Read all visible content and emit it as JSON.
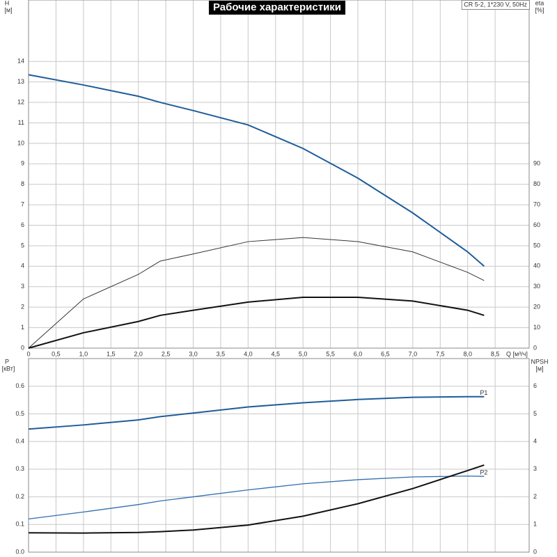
{
  "chart_data": [
    {
      "type": "line",
      "title": "Рабочие характеристики",
      "subtitle": "CR 5-2, 1*230 V, 50Hz",
      "ylabel": "H",
      "yunit": "[м]",
      "y2label": "eta",
      "y2unit": "[%]",
      "xlabel": "Q [м³/ч]",
      "x": [
        0,
        1,
        2,
        2.4,
        3,
        4,
        5,
        6,
        7,
        8,
        8.3
      ],
      "series": [
        {
          "color": "#1f5c99",
          "line_width": 2,
          "axis": "y",
          "values": [
            13.35,
            12.85,
            12.3,
            12.0,
            11.6,
            10.9,
            9.75,
            8.3,
            6.6,
            4.7,
            4.0
          ]
        },
        {
          "color": "#333333",
          "line_width": 1,
          "axis": "y2",
          "values": [
            0,
            24,
            36,
            42.5,
            46,
            52,
            54,
            52,
            47,
            37,
            33
          ]
        },
        {
          "color": "#111111",
          "line_width": 2,
          "axis": "y2",
          "values": [
            0,
            7.5,
            13,
            16,
            18.5,
            22.5,
            24.8,
            24.8,
            23,
            18.5,
            16
          ]
        }
      ],
      "xlim": [
        0,
        9.12
      ],
      "xticks": [
        0,
        {
          "value": 0.5,
          "label": "0,5"
        },
        {
          "value": 1,
          "label": "1,0"
        },
        {
          "value": 1.5,
          "label": "1,5"
        },
        {
          "value": 2,
          "label": "2,0"
        },
        {
          "value": 2.5,
          "label": "2,5"
        },
        {
          "value": 3,
          "label": "3,0"
        },
        {
          "value": 3.5,
          "label": "3,5"
        },
        {
          "value": 4,
          "label": "4,0"
        },
        {
          "value": 4.5,
          "label": "4,5"
        },
        {
          "value": 5,
          "label": "5,0"
        },
        {
          "value": 5.5,
          "label": "5,5"
        },
        {
          "value": 6,
          "label": "6,0"
        },
        {
          "value": 6.5,
          "label": "6,5"
        },
        {
          "value": 7,
          "label": "7,0"
        },
        {
          "value": 7.5,
          "label": "7,5"
        },
        {
          "value": 8,
          "label": "8,0"
        },
        {
          "value": 8.5,
          "label": "8,5"
        }
      ],
      "ylim": [
        0,
        17
      ],
      "yticks": [
        0,
        1,
        2,
        3,
        4,
        5,
        6,
        7,
        8,
        9,
        10,
        11,
        12,
        13,
        14
      ],
      "y2lim": [
        0,
        170
      ],
      "y2ticks": [
        0,
        10,
        20,
        30,
        40,
        50,
        60,
        70,
        80,
        90
      ],
      "grid": true
    },
    {
      "type": "line",
      "ylabel": "P",
      "yunit": "[кВт]",
      "y2label": "NPSH",
      "y2unit": "[м]",
      "x": [
        0,
        1,
        2,
        2.4,
        3,
        4,
        5,
        6,
        7,
        8,
        8.3
      ],
      "series": [
        {
          "name": "P1",
          "color": "#1f5c99",
          "line_width": 2,
          "axis": "y",
          "values": [
            0.445,
            0.46,
            0.478,
            0.49,
            0.503,
            0.525,
            0.54,
            0.552,
            0.56,
            0.562,
            0.562
          ]
        },
        {
          "name": "P2",
          "color": "#2f6db0",
          "line_width": 1.3,
          "axis": "y",
          "values": [
            0.12,
            0.145,
            0.172,
            0.185,
            0.2,
            0.225,
            0.247,
            0.262,
            0.272,
            0.275,
            0.274
          ]
        },
        {
          "color": "#111111",
          "line_width": 2,
          "axis": "y2",
          "values": [
            0.7,
            0.69,
            0.71,
            0.74,
            0.8,
            0.98,
            1.3,
            1.75,
            2.3,
            2.95,
            3.15
          ]
        }
      ],
      "xlim": [
        0,
        9.12
      ],
      "ylim": [
        0,
        0.7
      ],
      "yticks": [
        {
          "value": 0,
          "label": "0.0"
        },
        0.1,
        0.2,
        0.3,
        0.4,
        0.5,
        0.6
      ],
      "y2lim": [
        0,
        7
      ],
      "y2ticks": [
        0,
        1,
        2,
        3,
        4,
        5,
        6
      ],
      "grid": true
    }
  ]
}
